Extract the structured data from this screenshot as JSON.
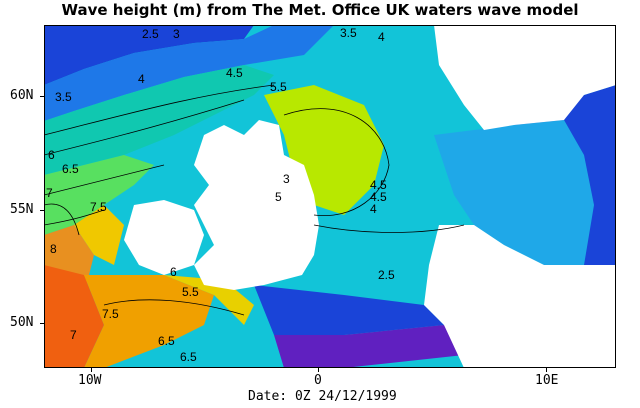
{
  "title": "Wave height (m) from The Met. Office UK waters wave model",
  "date_label": "Date: 0Z 24/12/1999",
  "y_axis": {
    "ticks": [
      "60N",
      "55N",
      "50N"
    ]
  },
  "x_axis": {
    "ticks": [
      "10W",
      "0",
      "10E"
    ]
  },
  "contour_labels": [
    "2.5",
    "3",
    "3.5",
    "4",
    "4",
    "4.5",
    "5.5",
    "3.5",
    "5",
    "4.5",
    "6",
    "6.5",
    "7",
    "7.5",
    "8",
    "6",
    "5.5",
    "6.5",
    "7.5",
    "7",
    "6.5",
    "2.5",
    "3",
    "4.5",
    "4"
  ],
  "colors": {
    "sea_low": "#1f4fe0",
    "sea_mid": "#10c8d8",
    "sea_high": "#b8e800",
    "sea_peak": "#f86818",
    "land": "#ffffff",
    "high_mountain": "#7820c8"
  }
}
